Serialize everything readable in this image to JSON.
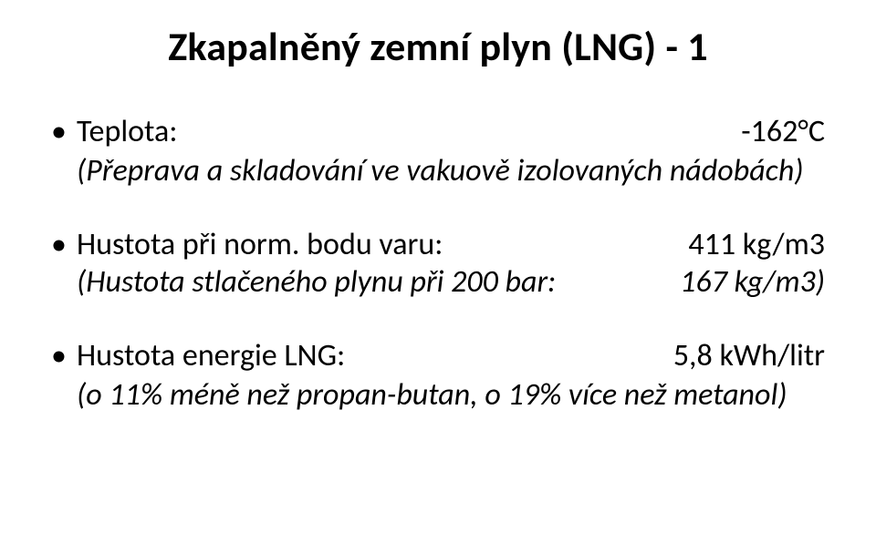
{
  "title": "Zkapalněný zemní plyn (LNG) - 1",
  "item1": {
    "label": "Teplota:",
    "value": "-162°C",
    "sub": "(Přeprava a skladování ve vakuově izolovaných nádobách)"
  },
  "item2": {
    "label": "Hustota při norm. bodu varu:",
    "value": "411 kg/m3",
    "sub_label": "(Hustota stlačeného plynu při 200 bar:",
    "sub_value": "167 kg/m3)"
  },
  "item3": {
    "label": "Hustota energie LNG:",
    "value": "5,8 kWh/litr",
    "sub": "(o 11% méně než propan-butan, o 19% více než metanol)"
  }
}
